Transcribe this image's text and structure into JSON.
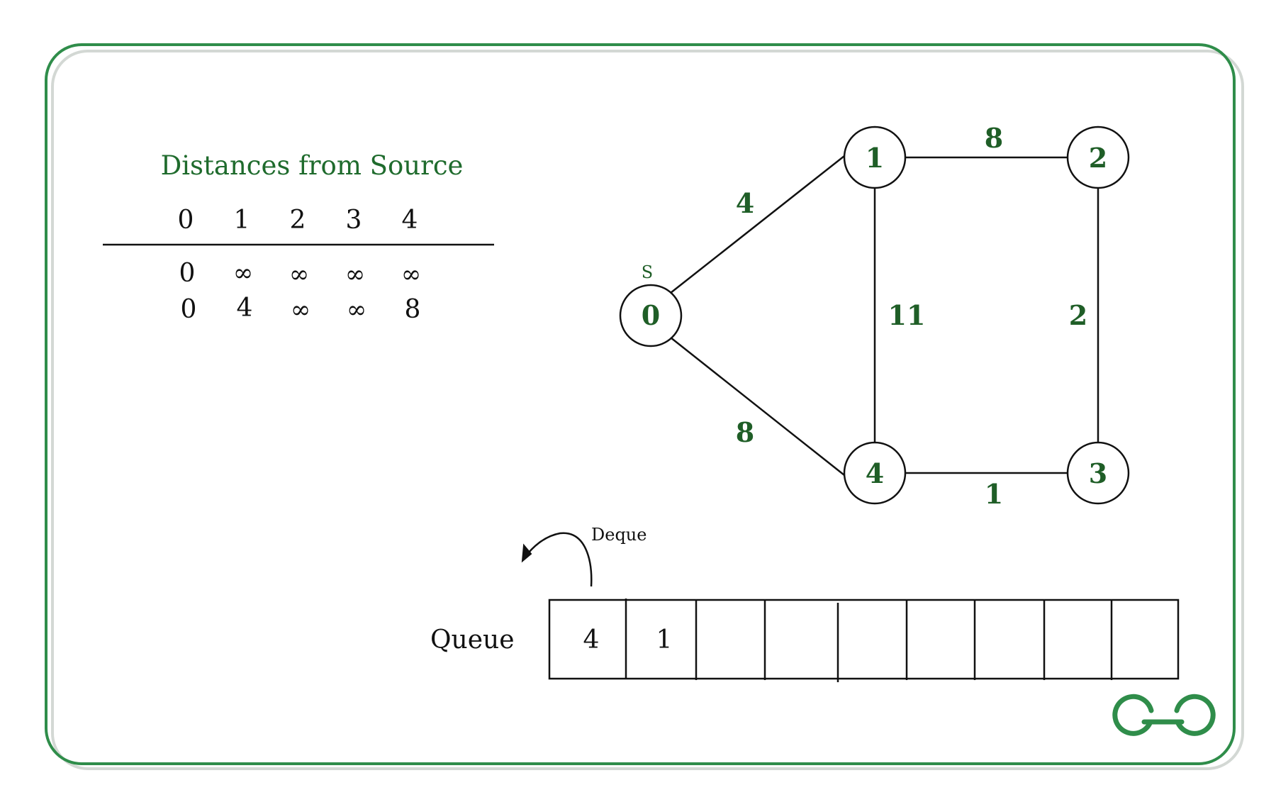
{
  "distances": {
    "title": "Distances from Source",
    "columns": [
      "0",
      "1",
      "2",
      "3",
      "4"
    ],
    "rows": [
      [
        "0",
        "∞",
        "∞",
        "∞",
        "∞"
      ],
      [
        "0",
        "4",
        "∞",
        "∞",
        "8"
      ]
    ]
  },
  "graph": {
    "source_marker": "S",
    "nodes": [
      "0",
      "1",
      "2",
      "3",
      "4"
    ],
    "edges": [
      {
        "from": "0",
        "to": "1",
        "weight": "4"
      },
      {
        "from": "0",
        "to": "4",
        "weight": "8"
      },
      {
        "from": "1",
        "to": "2",
        "weight": "8"
      },
      {
        "from": "1",
        "to": "4",
        "weight": "11"
      },
      {
        "from": "2",
        "to": "3",
        "weight": "2"
      },
      {
        "from": "4",
        "to": "3",
        "weight": "1"
      }
    ]
  },
  "queue": {
    "label": "Queue",
    "dequeue_label": "Deque",
    "items": [
      "4",
      "1",
      "",
      "",
      "",
      "",
      "",
      "",
      ""
    ]
  },
  "colors": {
    "accent": "#2f8d4a",
    "text_green": "#1f5e27",
    "shadow": "#d3d8d4"
  },
  "logo": {
    "icon": "gfg-logo-icon"
  }
}
